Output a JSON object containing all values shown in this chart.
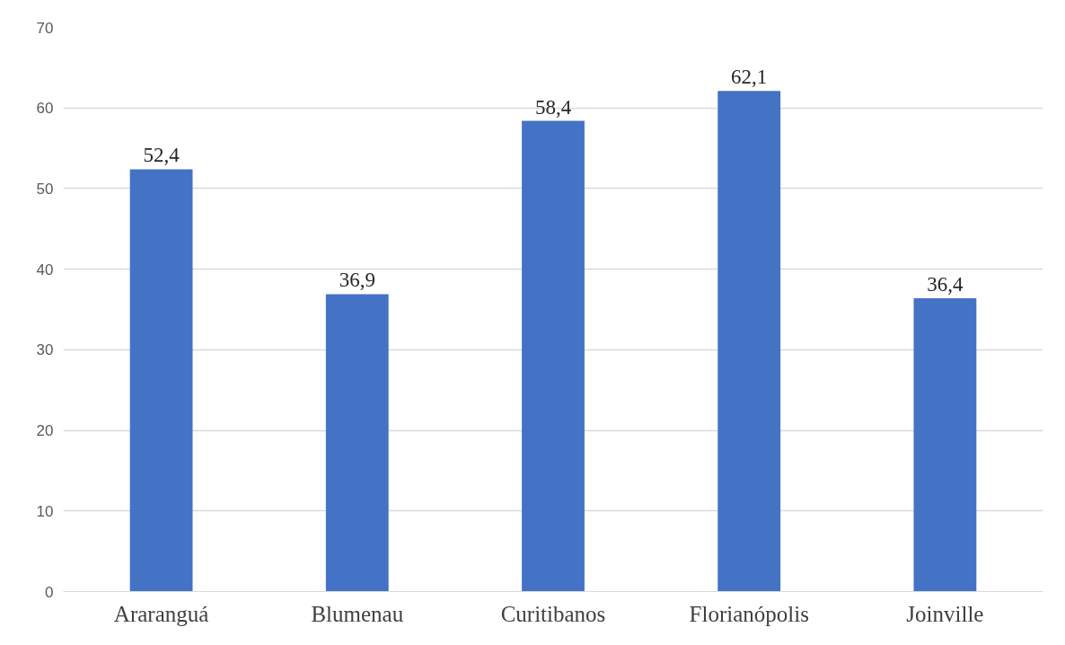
{
  "chart_data": {
    "type": "bar",
    "categories": [
      "Araranguá",
      "Blumenau",
      "Curitibanos",
      "Florianópolis",
      "Joinville"
    ],
    "values": [
      52.4,
      36.9,
      58.4,
      62.1,
      36.4
    ],
    "value_labels": [
      "52,4",
      "36,9",
      "58,4",
      "62,1",
      "36,4"
    ],
    "color": "#4472c4",
    "ylim": [
      0,
      70
    ],
    "yticks": [
      0,
      10,
      20,
      30,
      40,
      50,
      60,
      70
    ],
    "grid": "y"
  }
}
